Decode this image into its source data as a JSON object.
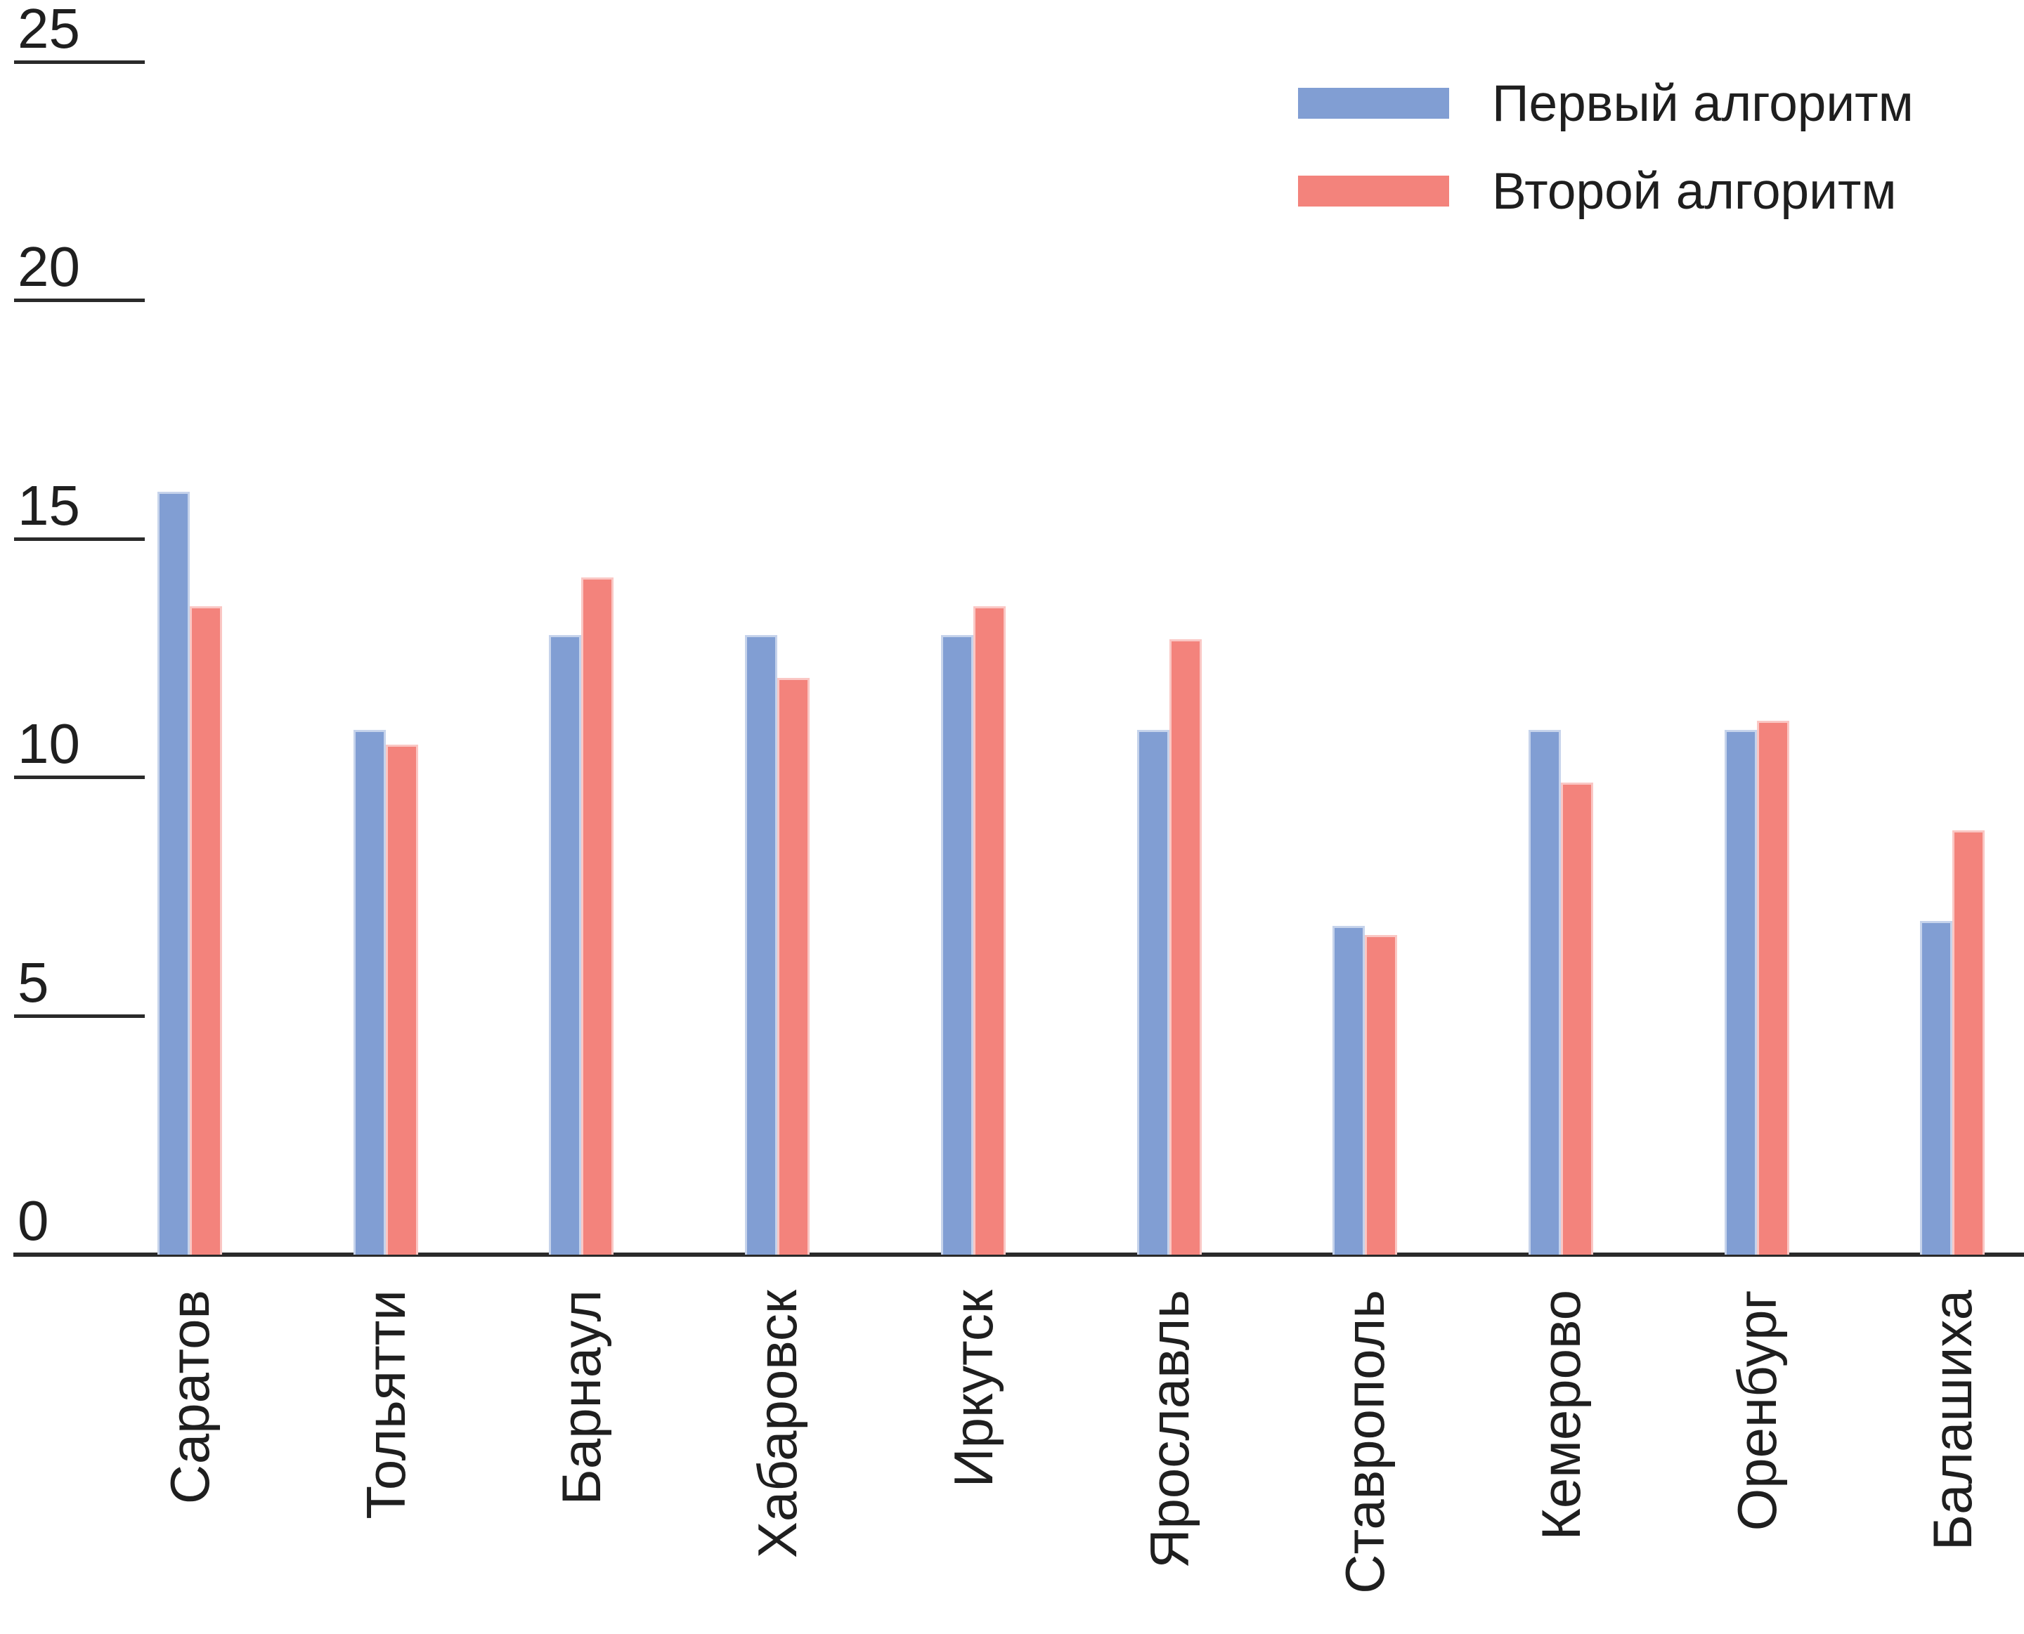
{
  "chart_data": {
    "type": "bar",
    "title": "",
    "xlabel": "",
    "ylabel": "",
    "categories": [
      "Саратов",
      "Тольятти",
      "Барнаул",
      "Хабаровск",
      "Иркутск",
      "Ярославль",
      "Ставрополь",
      "Кемерово",
      "Оренбург",
      "Балашиха"
    ],
    "series": [
      {
        "name": "Первый алгоритм",
        "color": "#819ED3",
        "values": [
          16.0,
          11.0,
          13.0,
          13.0,
          13.0,
          11.0,
          6.9,
          11.0,
          11.0,
          7.0
        ]
      },
      {
        "name": "Второй алгоритм",
        "color": "#F3837C",
        "values": [
          13.6,
          10.7,
          14.2,
          12.1,
          13.6,
          12.9,
          6.7,
          9.9,
          11.2,
          8.9
        ]
      }
    ],
    "yticks": [
      25,
      20,
      15,
      10,
      5,
      0
    ],
    "ylim": [
      0,
      25
    ],
    "grid": false,
    "legend_position": "top-right",
    "axis_color": "#2a2a2a",
    "text_color": "#1f1f1f"
  }
}
